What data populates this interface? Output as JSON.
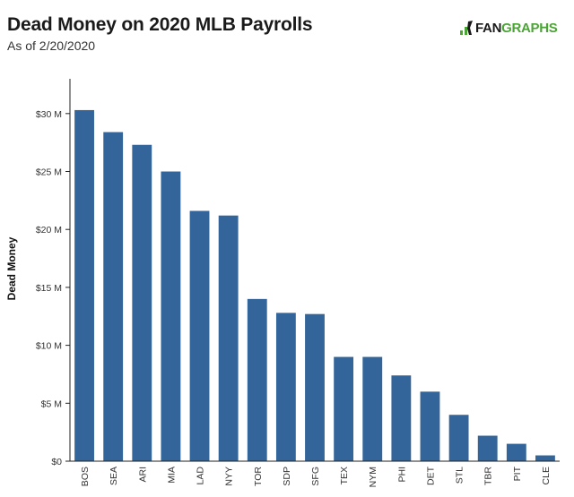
{
  "header": {
    "title": "Dead Money on 2020 MLB Payrolls",
    "subtitle": "As of 2/20/2020",
    "logo_part1": "FAN",
    "logo_part2": "GRAPHS"
  },
  "colors": {
    "bar": "#34659a",
    "logo_green": "#4aa534",
    "axis": "#222222"
  },
  "chart_data": {
    "type": "bar",
    "title": "Dead Money on 2020 MLB Payrolls",
    "subtitle": "As of 2/20/2020",
    "xlabel": "",
    "ylabel": "Dead Money",
    "ylim": [
      0,
      33
    ],
    "yticks": [
      0,
      5,
      10,
      15,
      20,
      25,
      30
    ],
    "ytick_labels": [
      "$0",
      "$5 M",
      "$10 M",
      "$15 M",
      "$20 M",
      "$25 M",
      "$30 M"
    ],
    "grid": false,
    "categories": [
      "BOS",
      "SEA",
      "ARI",
      "MIA",
      "LAD",
      "NYY",
      "TOR",
      "SDP",
      "SFG",
      "TEX",
      "NYM",
      "PHI",
      "DET",
      "STL",
      "TBR",
      "PIT",
      "CLE"
    ],
    "values": [
      30.3,
      28.4,
      27.3,
      25.0,
      21.6,
      21.2,
      14.0,
      12.8,
      12.7,
      9.0,
      9.0,
      7.4,
      6.0,
      4.0,
      2.2,
      1.5,
      0.5
    ]
  }
}
